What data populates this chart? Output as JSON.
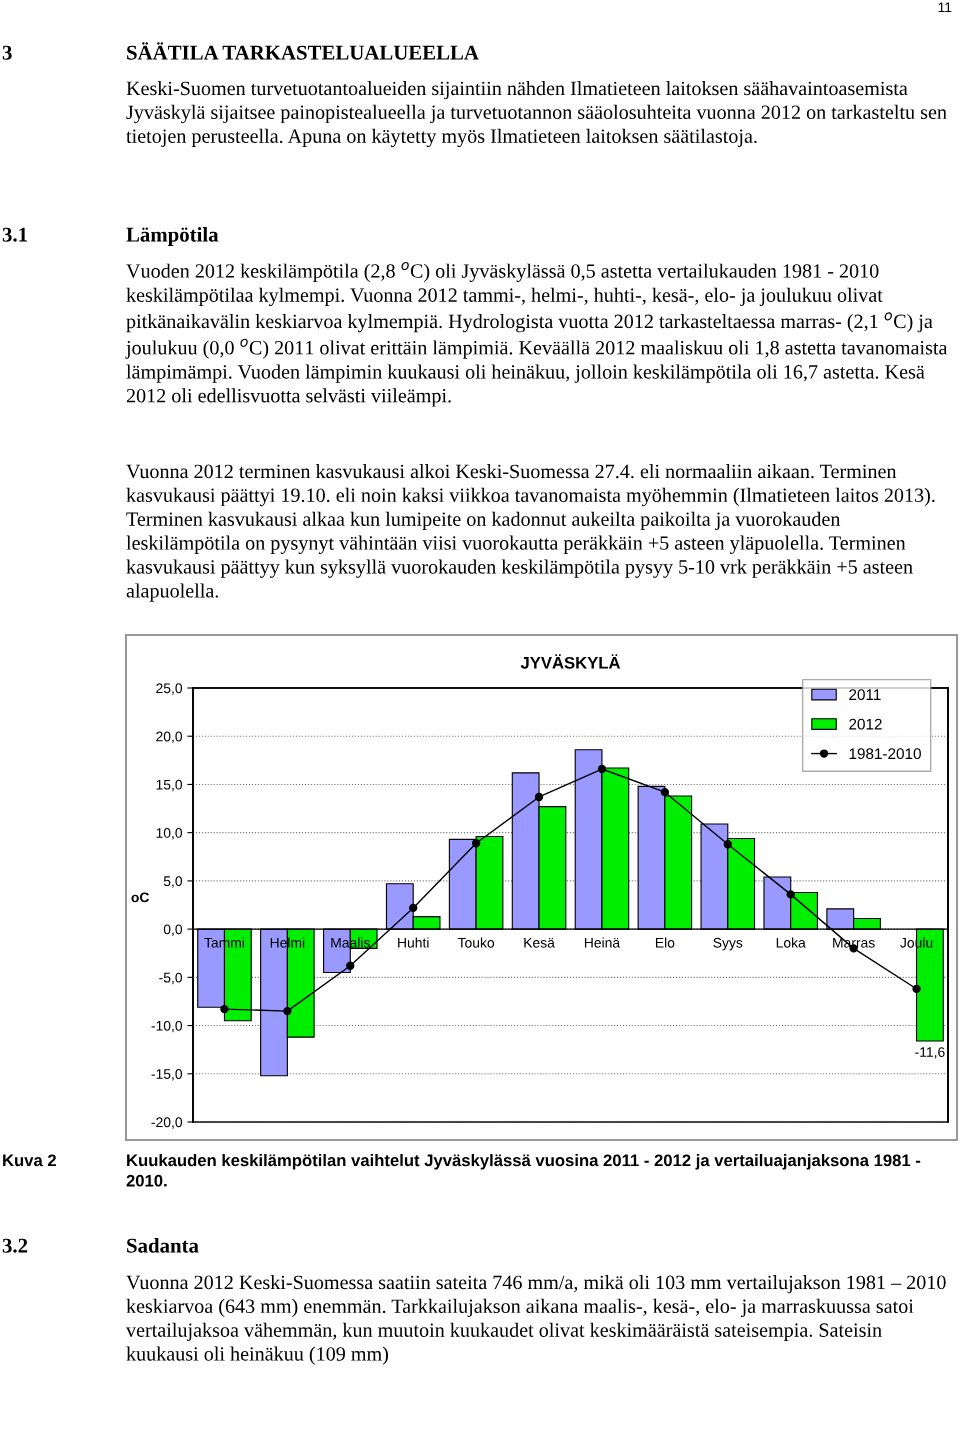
{
  "chart_data": {
    "type": "bar",
    "title": "JYVÄSKYLÄ",
    "ylabel": "oC",
    "categories": [
      "Tammi",
      "Helmi",
      "Maalis",
      "Huhti",
      "Touko",
      "Kesä",
      "Heinä",
      "Elo",
      "Syys",
      "Loka",
      "Marras",
      "Joulu"
    ],
    "series": [
      {
        "name": "2011",
        "color": "#9999ff",
        "values": [
          -8.1,
          -15.2,
          -4.5,
          4.7,
          9.3,
          16.2,
          18.6,
          14.8,
          10.9,
          5.4,
          2.1,
          null
        ]
      },
      {
        "name": "2012",
        "color": "#00ee00",
        "values": [
          -9.5,
          -11.2,
          -2.0,
          1.3,
          9.6,
          12.7,
          16.7,
          13.8,
          9.4,
          3.8,
          1.1,
          -11.6
        ],
        "value_labels": [
          null,
          null,
          null,
          null,
          null,
          null,
          null,
          null,
          null,
          null,
          null,
          "-11,6"
        ]
      },
      {
        "name": "1981-2010",
        "type": "line",
        "color": "#000000",
        "marker": "circle",
        "line_style": "solid",
        "values": [
          -8.3,
          -8.5,
          -3.8,
          2.2,
          8.9,
          13.7,
          16.6,
          14.2,
          8.8,
          3.6,
          -2.0,
          -6.2
        ]
      }
    ],
    "ylim": [
      -20,
      25
    ],
    "yticks": [
      {
        "value": -20,
        "label": "-20,0"
      },
      {
        "value": -15,
        "label": "-15,0"
      },
      {
        "value": -10,
        "label": "-10,0"
      },
      {
        "value": -5,
        "label": "-5,0"
      },
      {
        "value": 0,
        "label": "0,0"
      },
      {
        "value": 5,
        "label": "5,0"
      },
      {
        "value": 10,
        "label": "10,0"
      },
      {
        "value": 15,
        "label": "15,0"
      },
      {
        "value": 20,
        "label": "20,0"
      },
      {
        "value": 25,
        "label": "25,0"
      }
    ],
    "grid": "y",
    "legend": "top right",
    "annotations": [
      "11",
      "3",
      "SÄÄTILA TARKASTELUALUEELLA",
      "Keski-Suomen turvetuotantoalueiden sijaintiin nähden Ilmatieteen laitoksen säähavaintoasemista Jyväskylä sijaitsee painopistealueella ja turvetuotannon sääolosuhteita vuonna 2012 on tarkasteltu sen tietojen perusteella. Apuna on käytetty myös Ilmatieteen laitoksen säätilastoja.",
      "3.1",
      "Lämpötila",
      "Vuoden 2012 keskilämpötila (2,8 $^{o}$C) oli Jyväskylässä 0,5 astetta vertailukauden 1981 - 2010 keskilämpötilaa kylmempi. Vuonna 2012 tammi-, helmi-, huhti-, kesä-, elo- ja joulukuu olivat pitkänaikavälin keskiarvoa kylmempiä. Hydrologista vuotta 2012 tarkasteltaessa marras- (2,1 $^{o}$C) ja joulukuu (0,0 $^{o}$C) 2011 olivat erittäin lämpimiä. Keväällä 2012 maaliskuu oli 1,8 astetta tavanomaista lämpimämpi. Vuoden lämpimin kuukausi oli heinäkuu, jolloin keskilämpötila oli 16,7 astetta. Kesä 2012 oli edellisvuotta selvästi viileämpi.",
      "Vuonna 2012 terminen kasvukausi alkoi Keski-Suomessa 27.4. eli normaaliin aikaan. Terminen kasvukausi päättyi 19.10. eli noin kaksi viikkoa tavanomaista myöhemmin (Ilmatieteen laitos 2013). Terminen kasvukausi alkaa kun lumipeite on kadonnut aukeilta paikoilta ja vuorokauden leskilämpötila on pysynyt vähintään viisi vuorokautta peräkkäin +5 asteen yläpuolella. Terminen kasvukausi päättyy kun syksyllä vuorokauden keskilämpötila pysyy 5-10 vrk peräkkäin +5 asteen alapuolella.",
      "Kuva 2",
      "Kuukauden keskilämpötilan vaihtelut Jyväskylässä vuosina 2011 - 2012 ja vertailuajanjaksona 1981 - 2010.",
      "3.2",
      "Sadanta",
      "Vuonna 2012 Keski-Suomessa saatiin sateita 746 mm/a, mikä oli 103 mm vertailujakson 1981 – 2010 keskiarvoa (643 mm) enemmän. Tarkkailujakson aikana maalis-, kesä-, elo- ja marraskuussa satoi vertailujaksoa vähemmän, kun muutoin kuukaudet olivat keskimääräistä sateisempia. Sateisin kuukausi oli heinäkuu (109 mm)"
    ]
  }
}
